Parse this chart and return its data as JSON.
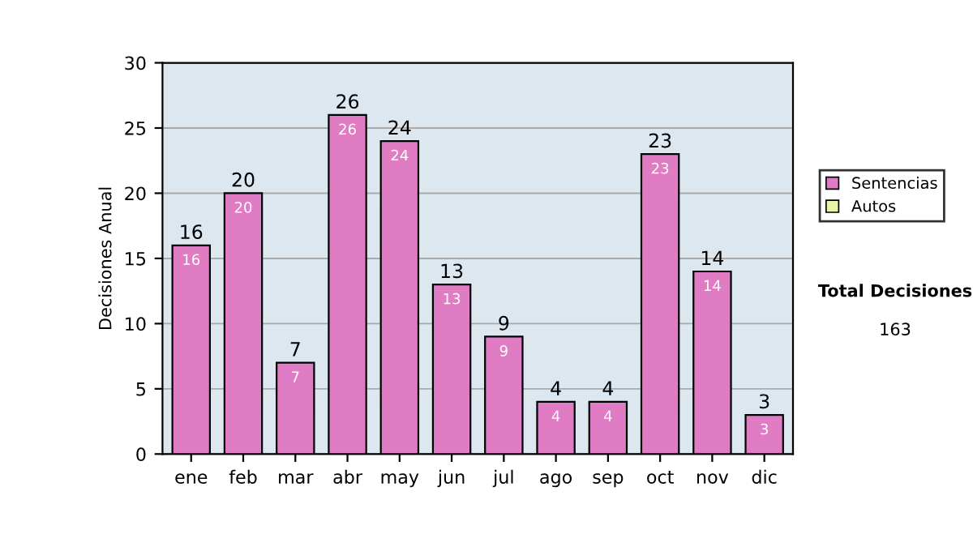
{
  "chart_data": {
    "type": "bar",
    "stacked": true,
    "ylabel": "Decisiones Anual",
    "categories": [
      "ene",
      "feb",
      "mar",
      "abr",
      "may",
      "jun",
      "jul",
      "ago",
      "sep",
      "oct",
      "nov",
      "dic"
    ],
    "series": [
      {
        "name": "Sentencias",
        "color": "#e07cc4",
        "values": [
          16,
          20,
          7,
          26,
          24,
          13,
          9,
          4,
          4,
          23,
          14,
          3
        ],
        "value_labels": [
          "16",
          "20",
          "7",
          "26",
          "24",
          "13",
          "9",
          "4",
          "4",
          "23",
          "14",
          "3"
        ]
      },
      {
        "name": "Autos",
        "color": "#e6f5a8",
        "values": [
          null,
          null,
          null,
          null,
          null,
          null,
          null,
          null,
          null,
          null,
          null,
          null
        ]
      }
    ],
    "totals": [
      "16",
      "20",
      "7",
      "26",
      "24",
      "13",
      "9",
      "4",
      "4",
      "23",
      "14",
      "3"
    ],
    "ylim": [
      0,
      30
    ],
    "yticks": [
      0,
      5,
      10,
      15,
      20,
      25,
      30
    ],
    "grid": "y",
    "legend": "right",
    "annotations": [
      "Total Decisiones",
      "163"
    ]
  }
}
